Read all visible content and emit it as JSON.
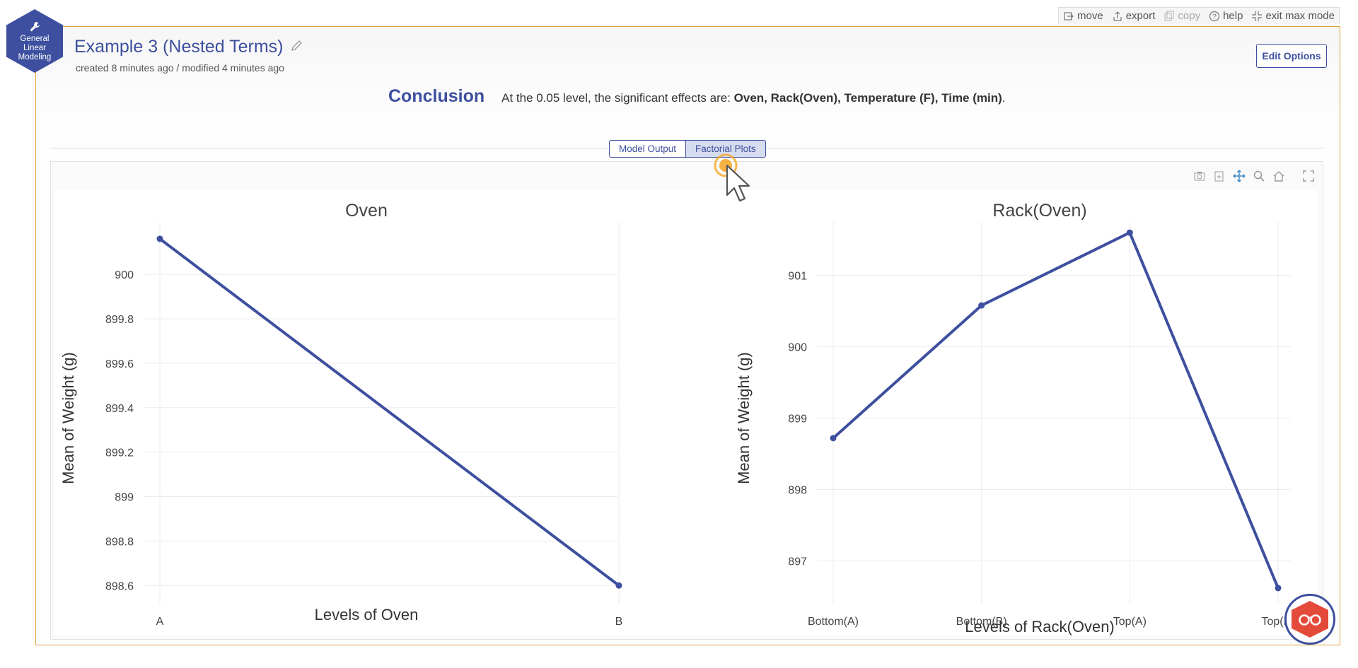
{
  "toolbar": {
    "items": [
      {
        "label": "move",
        "icon": "move-icon"
      },
      {
        "label": "export",
        "icon": "export-icon"
      },
      {
        "label": "copy",
        "icon": "copy-icon",
        "disabled": true
      },
      {
        "label": "help",
        "icon": "help-icon"
      },
      {
        "label": "exit max mode",
        "icon": "exit-max-icon"
      }
    ]
  },
  "app_badge": {
    "line1": "General",
    "line2": "Linear",
    "line3": "Modeling"
  },
  "analysis": {
    "title": "Example 3 (Nested Terms)",
    "meta": "created 8 minutes ago / modified 4 minutes ago",
    "edit_options_label": "Edit Options"
  },
  "conclusion": {
    "label": "Conclusion",
    "prefix": "At the 0.05 level, the significant effects are: ",
    "effects": "Oven, Rack(Oven), Temperature (F), Time (min)",
    "suffix": "."
  },
  "tabs": [
    {
      "label": "Model Output",
      "active": false
    },
    {
      "label": "Factorial Plots",
      "active": true
    }
  ],
  "colors": {
    "accent": "#3d4f9e",
    "series": "#3d4f9e",
    "panel_border": "#e0a43a",
    "help": "#e44a3a"
  },
  "chart_data": [
    {
      "type": "line",
      "title": "Oven",
      "xlabel": "Levels of Oven",
      "ylabel": "Mean of Weight (g)",
      "categories": [
        "A",
        "B"
      ],
      "values": [
        900.16,
        898.6
      ],
      "ylim": [
        898.55,
        900.22
      ],
      "yticks": [
        898.6,
        898.8,
        899,
        899.2,
        899.4,
        899.6,
        899.8,
        900
      ],
      "ytick_labels": [
        "898.6",
        "898.8",
        "899",
        "899.2",
        "899.4",
        "899.6",
        "899.8",
        "900"
      ]
    },
    {
      "type": "line",
      "title": "Rack(Oven)",
      "xlabel": "Levels of Rack(Oven)",
      "ylabel": "Mean of Weight (g)",
      "categories": [
        "Bottom(A)",
        "Bottom(B)",
        "Top(A)",
        "Top(B)"
      ],
      "values": [
        898.72,
        900.58,
        901.6,
        896.62
      ],
      "ylim": [
        896.5,
        901.7
      ],
      "yticks": [
        897,
        898,
        899,
        900,
        901
      ],
      "ytick_labels": [
        "897",
        "898",
        "899",
        "900",
        "901"
      ]
    }
  ]
}
